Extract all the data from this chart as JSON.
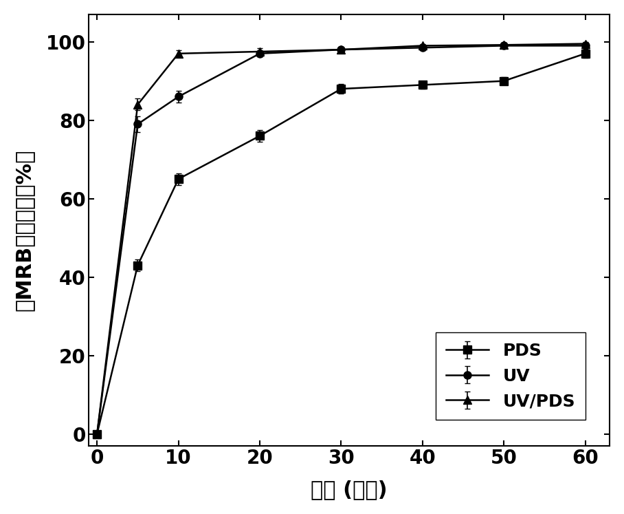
{
  "x": [
    0,
    5,
    10,
    20,
    30,
    40,
    50,
    60
  ],
  "PDS": [
    0,
    43,
    65,
    76,
    88,
    89,
    90,
    97
  ],
  "UV": [
    0,
    79,
    86,
    97,
    98,
    98.5,
    99,
    99
  ],
  "UV_PDS": [
    0,
    84,
    97,
    97.5,
    98,
    99,
    99.2,
    99.5
  ],
  "PDS_err": [
    0,
    1.5,
    1.5,
    1.5,
    1.2,
    1.0,
    1.0,
    1.0
  ],
  "UV_err": [
    0,
    2.0,
    1.5,
    0.8,
    0.5,
    0.5,
    0.5,
    0.5
  ],
  "UV_PDS_err": [
    0,
    1.5,
    0.8,
    0.8,
    0.5,
    0.5,
    0.5,
    0.5
  ],
  "xlabel": "时间 (分钟)",
  "ylabel": "对MRB的去除率（%）",
  "xlim": [
    -1,
    63
  ],
  "ylim": [
    -3,
    107
  ],
  "xticks": [
    0,
    10,
    20,
    30,
    40,
    50,
    60
  ],
  "yticks": [
    0,
    20,
    40,
    60,
    80,
    100
  ],
  "legend_labels": [
    "PDS",
    "UV",
    "UV/PDS"
  ],
  "color": "#000000",
  "linewidth": 1.8,
  "markersize": 8,
  "xlabel_fontsize": 22,
  "ylabel_fontsize": 22,
  "tick_fontsize": 20,
  "legend_fontsize": 18
}
